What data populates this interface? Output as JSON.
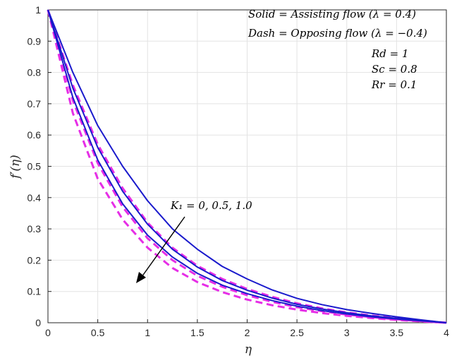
{
  "chart_data": {
    "type": "line",
    "xlabel": "η",
    "ylabel": "f′(η)",
    "xlim": [
      0,
      4
    ],
    "ylim": [
      0,
      1
    ],
    "xticks": [
      "0",
      "0.5",
      "1",
      "1.5",
      "2",
      "2.5",
      "3",
      "3.5",
      "4"
    ],
    "yticks": [
      "0",
      "0.1",
      "0.2",
      "0.3",
      "0.4",
      "0.5",
      "0.6",
      "0.7",
      "0.8",
      "0.9",
      "1"
    ],
    "grid": true,
    "legend_lines": [
      "Solid = Assisting flow (λ = 0.4)",
      "Dash = Opposing flow (λ = −0.4)"
    ],
    "parameters": [
      "Rd = 1",
      "Sc = 0.8",
      "Rr = 0.1"
    ],
    "annotation": "K₁ = 0, 0.5, 1.0",
    "series_colors": {
      "solid": "#1a1acc",
      "dash": "#e62ee6"
    },
    "x": [
      0,
      0.25,
      0.5,
      0.75,
      1.0,
      1.25,
      1.5,
      1.75,
      2.0,
      2.25,
      2.5,
      2.75,
      3.0,
      3.25,
      3.5,
      3.75,
      4.0
    ],
    "series": [
      {
        "style": "solid",
        "values": [
          1.0,
          0.8,
          0.63,
          0.5,
          0.39,
          0.3,
          0.235,
          0.18,
          0.14,
          0.105,
          0.078,
          0.058,
          0.042,
          0.03,
          0.019,
          0.009,
          0.0
        ]
      },
      {
        "style": "solid",
        "values": [
          1.0,
          0.75,
          0.56,
          0.42,
          0.315,
          0.235,
          0.178,
          0.135,
          0.104,
          0.079,
          0.059,
          0.044,
          0.032,
          0.022,
          0.014,
          0.007,
          0.0
        ]
      },
      {
        "style": "solid",
        "values": [
          1.0,
          0.72,
          0.52,
          0.38,
          0.28,
          0.21,
          0.158,
          0.12,
          0.093,
          0.071,
          0.053,
          0.039,
          0.028,
          0.019,
          0.012,
          0.006,
          0.0
        ]
      },
      {
        "style": "dash",
        "values": [
          1.0,
          0.76,
          0.57,
          0.43,
          0.32,
          0.24,
          0.182,
          0.14,
          0.108,
          0.083,
          0.062,
          0.046,
          0.033,
          0.023,
          0.015,
          0.007,
          0.0
        ]
      },
      {
        "style": "dash",
        "values": [
          1.0,
          0.71,
          0.51,
          0.37,
          0.27,
          0.2,
          0.15,
          0.115,
          0.088,
          0.067,
          0.05,
          0.037,
          0.026,
          0.018,
          0.011,
          0.005,
          0.0
        ]
      },
      {
        "style": "dash",
        "values": [
          1.0,
          0.67,
          0.46,
          0.33,
          0.24,
          0.175,
          0.13,
          0.098,
          0.074,
          0.056,
          0.042,
          0.031,
          0.022,
          0.015,
          0.009,
          0.004,
          0.0
        ]
      }
    ]
  }
}
